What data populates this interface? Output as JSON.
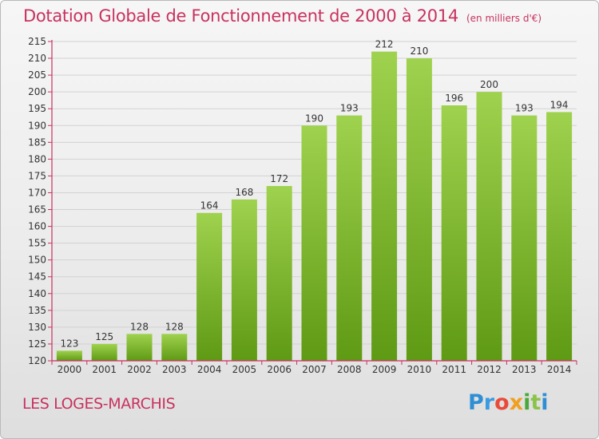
{
  "title": "Dotation Globale de Fonctionnement de 2000 à 2014",
  "subtitle": "(en milliers d'€)",
  "commune": "LES LOGES-MARCHIS",
  "logo": {
    "letters": [
      "P",
      "r",
      "o",
      "x",
      "i",
      "t",
      "i"
    ]
  },
  "colors": {
    "title": "#c8325f",
    "bar_light": "#9fd24e",
    "bar_dark": "#5f9a14",
    "axis": "#c8325f"
  },
  "chart_data": {
    "type": "bar",
    "title": "Dotation Globale de Fonctionnement de 2000 à 2014",
    "subtitle": "(en milliers d'€)",
    "categories": [
      "2000",
      "2001",
      "2002",
      "2003",
      "2004",
      "2005",
      "2006",
      "2007",
      "2008",
      "2009",
      "2010",
      "2011",
      "2012",
      "2013",
      "2014"
    ],
    "values": [
      123,
      125,
      128,
      128,
      164,
      168,
      172,
      190,
      193,
      212,
      210,
      196,
      200,
      193,
      194
    ],
    "ylim": [
      120,
      215
    ],
    "yticks": [
      120,
      125,
      130,
      135,
      140,
      145,
      150,
      155,
      160,
      165,
      170,
      175,
      180,
      185,
      190,
      195,
      200,
      205,
      210,
      215
    ],
    "grid": true,
    "legend": "none",
    "data_labels": true
  }
}
